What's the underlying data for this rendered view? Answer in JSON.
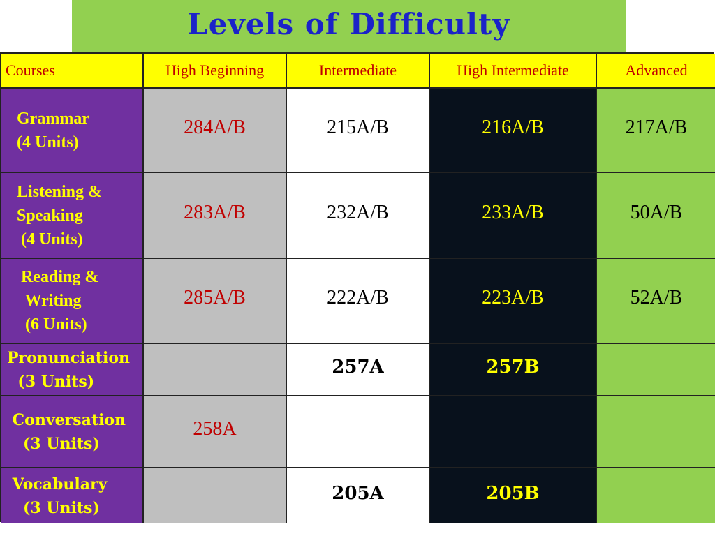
{
  "title": "Levels of Difficulty",
  "headers": [
    "Courses",
    "High Beginning",
    "Intermediate",
    "High Intermediate",
    "Advanced"
  ],
  "rows": [
    {
      "course": "Grammar\n(4 Units)",
      "high_beginning": "284A/B",
      "intermediate": "215A/B",
      "high_intermediate": "216A/B",
      "advanced": "217A/B"
    },
    {
      "course": "Listening &\nSpeaking\n (4 Units)",
      "high_beginning": "283A/B",
      "intermediate": "232A/B",
      "high_intermediate": "233A/B",
      "advanced": "50A/B"
    },
    {
      "course": " Reading &\n  Writing\n  (6 Units)",
      "high_beginning": "285A/B",
      "intermediate": "222A/B",
      "high_intermediate": "223A/B",
      "advanced": "52A/B"
    },
    {
      "course": "Pronunciation\n  (3 Units)",
      "high_beginning": "",
      "intermediate": "257A",
      "high_intermediate": "257B",
      "advanced": ""
    },
    {
      "course": " Conversation\n   (3 Units)",
      "high_beginning": "258A",
      "intermediate": "",
      "high_intermediate": "",
      "advanced": ""
    },
    {
      "course": " Vocabulary\n   (3 Units)",
      "high_beginning": "",
      "intermediate": "205A",
      "high_intermediate": "205B",
      "advanced": ""
    }
  ],
  "colors": {
    "title_bg": "#92d050",
    "title_text": "#1b23c9",
    "header_bg": "#ffff00",
    "header_text": "#c00000",
    "course_bg": "#7030a0",
    "course_text": "#ffff00",
    "high_beginning_bg": "#bfbfbf",
    "intermediate_bg": "#ffffff",
    "high_intermediate_bg": "#08111c",
    "advanced_bg": "#92d050"
  }
}
